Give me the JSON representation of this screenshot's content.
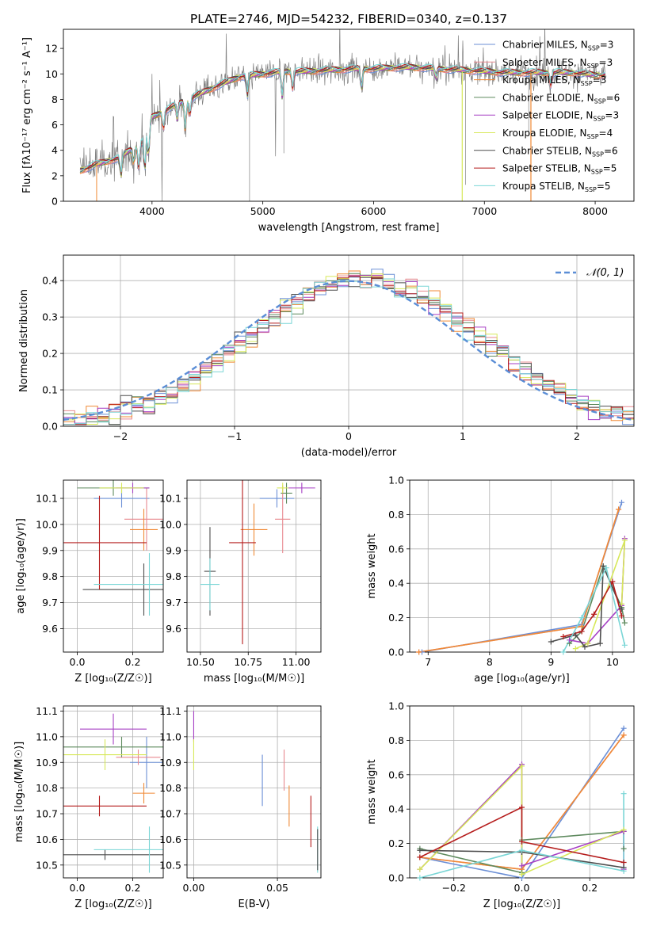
{
  "title": "PLATE=2746, MJD=54232, FIBERID=0340, z=0.137",
  "colors": {
    "chabrier_miles": "#6b8fd6",
    "salpeter_miles": "#e8898f",
    "kroupa_miles": "#f08a36",
    "chabrier_elodie": "#5e8a5e",
    "salpeter_elodie": "#a63fc4",
    "kroupa_elodie": "#d7e85a",
    "chabrier_stelib": "#4d4d4d",
    "salpeter_stelib": "#b51c1c",
    "kroupa_stelib": "#7ad6d6",
    "data": "#808080",
    "normal": "#5b8ed6"
  },
  "chart_data": [
    {
      "id": "spectrum",
      "type": "line",
      "xlabel": "wavelength [Angstrom, rest frame]",
      "ylabel": "Flux [fλ10⁻¹⁷ erg cm⁻² s⁻¹ A⁻¹]",
      "xlim": [
        3200,
        8350
      ],
      "ylim": [
        0,
        13.5
      ],
      "xticks": [
        4000,
        5000,
        6000,
        7000,
        8000
      ],
      "yticks": [
        0,
        2,
        4,
        6,
        8,
        10,
        12
      ],
      "legend_position": "right",
      "legend": [
        {
          "label": "Chabrier MILES, N",
          "sub": "SSP",
          "tail": "=3",
          "key": "chabrier_miles"
        },
        {
          "label": "Salpeter MILES, N",
          "sub": "SSP",
          "tail": "=3",
          "key": "salpeter_miles"
        },
        {
          "label": "Kroupa MILES, N",
          "sub": "SSP",
          "tail": "=3",
          "key": "kroupa_miles"
        },
        {
          "label": "Chabrier ELODIE, N",
          "sub": "SSP",
          "tail": "=6",
          "key": "chabrier_elodie"
        },
        {
          "label": "Salpeter ELODIE, N",
          "sub": "SSP",
          "tail": "=3",
          "key": "salpeter_elodie"
        },
        {
          "label": "Kroupa ELODIE, N",
          "sub": "SSP",
          "tail": "=4",
          "key": "kroupa_elodie"
        },
        {
          "label": "Chabrier STELIB, N",
          "sub": "SSP",
          "tail": "=6",
          "key": "chabrier_stelib"
        },
        {
          "label": "Salpeter STELIB, N",
          "sub": "SSP",
          "tail": "=5",
          "key": "salpeter_stelib"
        },
        {
          "label": "Kroupa STELIB, N",
          "sub": "SSP",
          "tail": "=5",
          "key": "kroupa_stelib"
        }
      ],
      "continuum": {
        "x": [
          3350,
          3500,
          3700,
          3900,
          4000,
          4200,
          4400,
          4600,
          4800,
          5000,
          5200,
          5400,
          5600,
          5800,
          6000,
          6200,
          6400,
          6600,
          6800,
          7000,
          7200,
          7400,
          7600,
          7800,
          8000,
          8100
        ],
        "y": [
          2.4,
          2.9,
          3.4,
          4.6,
          6.6,
          7.5,
          8.3,
          9.1,
          9.8,
          10.0,
          10.2,
          10.2,
          10.3,
          10.4,
          10.4,
          10.5,
          10.5,
          10.4,
          10.3,
          10.2,
          10.1,
          10.1,
          10.1,
          10.1,
          9.9,
          9.9
        ]
      }
    },
    {
      "id": "residual-hist",
      "type": "line",
      "xlabel": "(data-model)/error",
      "ylabel": "Normed distribution",
      "xlim": [
        -2.5,
        2.5
      ],
      "ylim": [
        0,
        0.47
      ],
      "xticks": [
        -2,
        -1,
        0,
        1,
        2
      ],
      "yticks": [
        0.0,
        0.1,
        0.2,
        0.3,
        0.4
      ],
      "legend_label": "𝒩(0, 1)",
      "normal": {
        "mean": 0,
        "sigma": 1
      }
    },
    {
      "id": "age-vs-Z",
      "type": "scatter",
      "xlabel": "Z [log₁₀(Z/Z☉)]",
      "ylabel": "age  [log₁₀(age/yr)]",
      "xlim": [
        -0.05,
        0.31
      ],
      "ylim": [
        9.51,
        10.17
      ],
      "xticks": [
        0.0,
        0.2
      ],
      "yticks": [
        9.6,
        9.7,
        9.8,
        9.9,
        10.0,
        10.1
      ],
      "points": [
        {
          "key": "chabrier_miles",
          "x": 0.16,
          "y": 10.1,
          "xerr": 0.1,
          "yerr": 0.035
        },
        {
          "key": "salpeter_miles",
          "x": 0.25,
          "y": 10.02,
          "xerr": 0.08,
          "yerr": 0.12
        },
        {
          "key": "kroupa_miles",
          "x": 0.24,
          "y": 9.98,
          "xerr": 0.05,
          "yerr": 0.08
        },
        {
          "key": "chabrier_elodie",
          "x": 0.13,
          "y": 10.14,
          "xerr": 0.13,
          "yerr": 0.03
        },
        {
          "key": "salpeter_elodie",
          "x": 0.2,
          "y": 10.14,
          "xerr": 0.06,
          "yerr": 0.02
        },
        {
          "key": "kroupa_elodie",
          "x": 0.16,
          "y": 10.14,
          "xerr": 0.08,
          "yerr": 0.02
        },
        {
          "key": "chabrier_stelib",
          "x": 0.24,
          "y": 9.75,
          "xerr": 0.22,
          "yerr": 0.1
        },
        {
          "key": "salpeter_stelib",
          "x": 0.08,
          "y": 9.93,
          "xerr": 0.17,
          "yerr": 0.18
        },
        {
          "key": "kroupa_stelib",
          "x": 0.26,
          "y": 9.77,
          "xerr": 0.2,
          "yerr": 0.12
        }
      ]
    },
    {
      "id": "age-vs-mass",
      "type": "scatter",
      "xlabel": "mass [log₁₀(M/M☉)]",
      "ylabel": "",
      "xlim": [
        10.43,
        11.13
      ],
      "ylim": [
        9.51,
        10.17
      ],
      "xticks": [
        10.5,
        10.75,
        11.0
      ],
      "yticks": [
        9.6,
        9.7,
        9.8,
        9.9,
        10.0,
        10.1
      ],
      "points": [
        {
          "key": "chabrier_miles",
          "x": 10.9,
          "y": 10.1,
          "xerr": 0.09,
          "yerr": 0.035
        },
        {
          "key": "salpeter_miles",
          "x": 10.93,
          "y": 10.02,
          "xerr": 0.04,
          "yerr": 0.13
        },
        {
          "key": "kroupa_miles",
          "x": 10.78,
          "y": 9.98,
          "xerr": 0.07,
          "yerr": 0.1
        },
        {
          "key": "chabrier_elodie",
          "x": 10.95,
          "y": 10.12,
          "xerr": 0.03,
          "yerr": 0.04
        },
        {
          "key": "salpeter_elodie",
          "x": 11.03,
          "y": 10.14,
          "xerr": 0.07,
          "yerr": 0.02
        },
        {
          "key": "kroupa_elodie",
          "x": 10.93,
          "y": 10.14,
          "xerr": 0.03,
          "yerr": 0.02
        },
        {
          "key": "chabrier_stelib",
          "x": 10.55,
          "y": 9.82,
          "xerr": 0.03,
          "yerr": 0.17
        },
        {
          "key": "salpeter_stelib",
          "x": 10.72,
          "y": 9.93,
          "xerr": 0.07,
          "yerr": 0.39
        },
        {
          "key": "kroupa_stelib",
          "x": 10.55,
          "y": 9.77,
          "xerr": 0.05,
          "yerr": 0.1
        }
      ]
    },
    {
      "id": "weight-vs-age",
      "type": "line",
      "xlabel": "age  [log₁₀(age/yr)]",
      "ylabel": "mass weight",
      "xlim": [
        6.7,
        10.35
      ],
      "ylim": [
        0,
        1.0
      ],
      "xticks": [
        7,
        8,
        9,
        10
      ],
      "yticks": [
        0.0,
        0.2,
        0.4,
        0.6,
        0.8,
        1.0
      ],
      "series": [
        {
          "key": "chabrier_miles",
          "x": [
            6.9,
            9.5,
            10.15
          ],
          "y": [
            0.0,
            0.16,
            0.87
          ]
        },
        {
          "key": "salpeter_miles",
          "x": [
            6.85,
            9.5,
            10.1
          ],
          "y": [
            0.0,
            0.15,
            0.83
          ]
        },
        {
          "key": "kroupa_miles",
          "x": [
            6.85,
            9.5,
            10.1
          ],
          "y": [
            0.0,
            0.15,
            0.83
          ]
        },
        {
          "key": "chabrier_elodie",
          "x": [
            9.3,
            9.5,
            9.85,
            10.15,
            10.2
          ],
          "y": [
            0.05,
            0.12,
            0.5,
            0.26,
            0.17
          ]
        },
        {
          "key": "salpeter_elodie",
          "x": [
            9.3,
            9.6,
            10.15,
            10.2
          ],
          "y": [
            0.07,
            0.05,
            0.27,
            0.66
          ]
        },
        {
          "key": "kroupa_elodie",
          "x": [
            9.4,
            9.6,
            10.2,
            10.15
          ],
          "y": [
            0.02,
            0.05,
            0.65,
            0.28
          ]
        },
        {
          "key": "chabrier_stelib",
          "x": [
            9.0,
            9.4,
            9.55,
            9.8,
            9.85,
            10.15
          ],
          "y": [
            0.06,
            0.1,
            0.03,
            0.05,
            0.5,
            0.25
          ]
        },
        {
          "key": "salpeter_stelib",
          "x": [
            9.2,
            9.5,
            9.7,
            10.0,
            10.15
          ],
          "y": [
            0.09,
            0.12,
            0.22,
            0.41,
            0.21
          ]
        },
        {
          "key": "kroupa_stelib",
          "x": [
            9.2,
            9.5,
            9.9,
            10.2
          ],
          "y": [
            0.0,
            0.2,
            0.49,
            0.04
          ]
        }
      ]
    },
    {
      "id": "mass-vs-Z",
      "type": "scatter",
      "xlabel": "Z [log₁₀(Z/Z☉)]",
      "ylabel": "mass [log₁₀(M/M☉)]",
      "xlim": [
        -0.05,
        0.31
      ],
      "ylim": [
        10.45,
        11.12
      ],
      "xticks": [
        0.0,
        0.2
      ],
      "yticks": [
        10.5,
        10.6,
        10.7,
        10.8,
        10.9,
        11.0,
        11.1
      ],
      "points": [
        {
          "key": "chabrier_miles",
          "x": 0.25,
          "y": 10.9,
          "xerr": 0.06,
          "yerr": 0.1
        },
        {
          "key": "salpeter_miles",
          "x": 0.22,
          "y": 10.92,
          "xerr": 0.08,
          "yerr": 0.03
        },
        {
          "key": "kroupa_miles",
          "x": 0.24,
          "y": 10.78,
          "xerr": 0.04,
          "yerr": 0.04
        },
        {
          "key": "chabrier_elodie",
          "x": 0.16,
          "y": 10.96,
          "xerr": 0.25,
          "yerr": 0.04
        },
        {
          "key": "salpeter_elodie",
          "x": 0.13,
          "y": 11.03,
          "xerr": 0.12,
          "yerr": 0.06
        },
        {
          "key": "kroupa_elodie",
          "x": 0.1,
          "y": 10.93,
          "xerr": 0.15,
          "yerr": 0.06
        },
        {
          "key": "chabrier_stelib",
          "x": 0.1,
          "y": 10.54,
          "xerr": 0.25,
          "yerr": 0.02
        },
        {
          "key": "salpeter_stelib",
          "x": 0.08,
          "y": 10.73,
          "xerr": 0.17,
          "yerr": 0.04
        },
        {
          "key": "kroupa_stelib",
          "x": 0.26,
          "y": 10.56,
          "xerr": 0.2,
          "yerr": 0.09
        }
      ]
    },
    {
      "id": "mass-vs-ebv",
      "type": "scatter",
      "xlabel": "E(B-V)",
      "ylabel": "",
      "xlim": [
        -0.004,
        0.076
      ],
      "ylim": [
        10.45,
        11.12
      ],
      "xticks": [
        0.0,
        0.05
      ],
      "yticks": [
        10.5,
        10.6,
        10.7,
        10.8,
        10.9,
        11.0,
        11.1
      ],
      "points": [
        {
          "key": "chabrier_miles",
          "x": 0.041,
          "y": 10.83,
          "xerr": 0,
          "yerr": 0.1
        },
        {
          "key": "salpeter_miles",
          "x": 0.054,
          "y": 10.87,
          "xerr": 0,
          "yerr": 0.08
        },
        {
          "key": "kroupa_miles",
          "x": 0.057,
          "y": 10.73,
          "xerr": 0,
          "yerr": 0.08
        },
        {
          "key": "salpeter_elodie",
          "x": 0.0,
          "y": 11.04,
          "xerr": 0,
          "yerr": 0.06
        },
        {
          "key": "kroupa_elodie",
          "x": 0.0,
          "y": 10.93,
          "xerr": 0,
          "yerr": 0.06
        },
        {
          "key": "salpeter_stelib",
          "x": 0.07,
          "y": 10.67,
          "xerr": 0,
          "yerr": 0.1
        },
        {
          "key": "kroupa_stelib",
          "x": 0.074,
          "y": 10.56,
          "xerr": 0,
          "yerr": 0.09
        },
        {
          "key": "chabrier_stelib",
          "x": 0.074,
          "y": 10.56,
          "xerr": 0,
          "yerr": 0.08
        }
      ]
    },
    {
      "id": "weight-vs-Z",
      "type": "line",
      "xlabel": "Z [log₁₀(Z/Z☉)]",
      "ylabel": "mass weight",
      "xlim": [
        -0.33,
        0.33
      ],
      "ylim": [
        0,
        1.0
      ],
      "xticks": [
        -0.2,
        0.0,
        0.2
      ],
      "yticks": [
        0.0,
        0.2,
        0.4,
        0.6,
        0.8,
        1.0
      ],
      "series": [
        {
          "key": "chabrier_miles",
          "x": [
            -0.3,
            0.0,
            0.3
          ],
          "y": [
            0.12,
            0.0,
            0.87
          ]
        },
        {
          "key": "salpeter_miles",
          "x": [
            -0.3,
            0.0,
            0.3
          ],
          "y": [
            0.12,
            0.05,
            0.83
          ]
        },
        {
          "key": "kroupa_miles",
          "x": [
            -0.3,
            0.0,
            0.3
          ],
          "y": [
            0.12,
            0.05,
            0.83
          ]
        },
        {
          "key": "chabrier_elodie",
          "x": [
            -0.3,
            0.0,
            0.0,
            0.3,
            0.3
          ],
          "y": [
            0.17,
            0.03,
            0.22,
            0.27,
            0.17
          ]
        },
        {
          "key": "salpeter_elodie",
          "x": [
            -0.3,
            0.0,
            0.0,
            0.3,
            0.3
          ],
          "y": [
            0.05,
            0.66,
            0.07,
            0.27,
            0.05
          ]
        },
        {
          "key": "kroupa_elodie",
          "x": [
            -0.3,
            0.0,
            0.0,
            0.3
          ],
          "y": [
            0.05,
            0.65,
            0.02,
            0.28
          ]
        },
        {
          "key": "chabrier_stelib",
          "x": [
            -0.3,
            0.0,
            0.3
          ],
          "y": [
            0.16,
            0.15,
            0.06
          ]
        },
        {
          "key": "salpeter_stelib",
          "x": [
            -0.3,
            0.0,
            0.0,
            0.3
          ],
          "y": [
            0.12,
            0.41,
            0.21,
            0.09
          ]
        },
        {
          "key": "kroupa_stelib",
          "x": [
            -0.3,
            0.0,
            0.3,
            0.3
          ],
          "y": [
            0.0,
            0.16,
            0.04,
            0.49
          ]
        }
      ]
    }
  ]
}
